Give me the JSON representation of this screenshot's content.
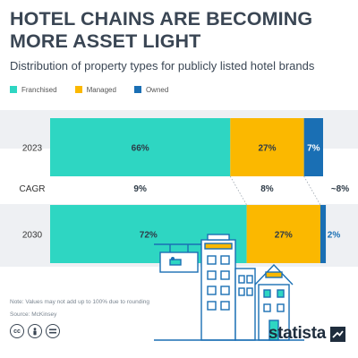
{
  "header": {
    "title_line1": "HOTEL CHAINS ARE BECOMING",
    "title_line2": "MORE ASSET LIGHT",
    "subtitle": "Distribution of property types for publicly listed hotel brands"
  },
  "legend": [
    {
      "label": "Franchised",
      "color": "#2ed6c2"
    },
    {
      "label": "Managed",
      "color": "#fbb800"
    },
    {
      "label": "Owned",
      "color": "#1a6fb4"
    }
  ],
  "chart_data": {
    "type": "bar",
    "orientation": "horizontal",
    "stacked": true,
    "categories": [
      "2023",
      "2030"
    ],
    "series": [
      {
        "name": "Franchised",
        "values": [
          66,
          72
        ],
        "labels": [
          "66%",
          "72%"
        ],
        "color": "#2ed6c2"
      },
      {
        "name": "Managed",
        "values": [
          27,
          27
        ],
        "labels": [
          "27%",
          "27%"
        ],
        "color": "#fbb800"
      },
      {
        "name": "Owned",
        "values": [
          7,
          2
        ],
        "labels": [
          "7%",
          "2%"
        ],
        "color": "#1a6fb4"
      }
    ],
    "cagr": {
      "label": "CAGR",
      "values": [
        "9%",
        "8%",
        "~8%"
      ]
    },
    "legend_position": "top-left",
    "grid": false
  },
  "footer": {
    "note": "Note: Values may not add up to 100% due to rounding",
    "source": "Source: McKinsey",
    "license_icons": [
      "cc-icon",
      "attribution-icon",
      "equals-icon"
    ],
    "brand": "statista"
  }
}
